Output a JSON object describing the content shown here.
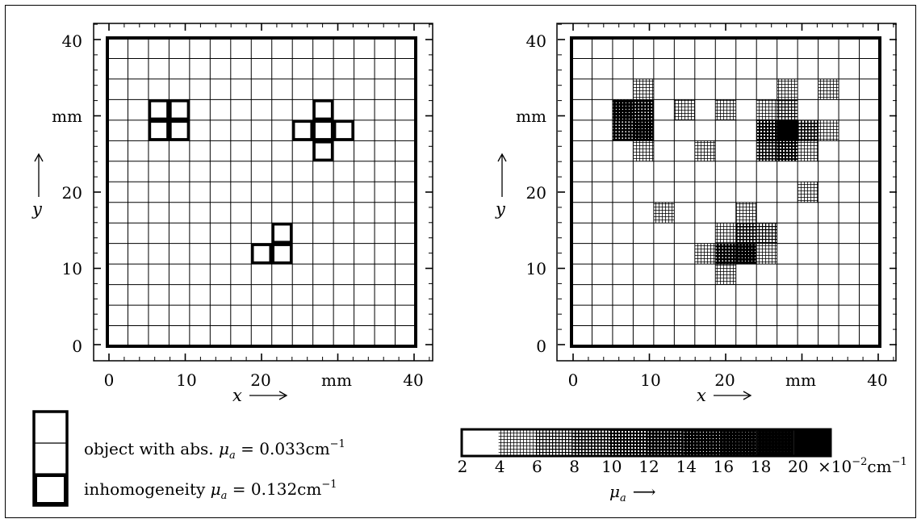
{
  "left_plot": {
    "y_ticks": [
      "0",
      "10",
      "20",
      "mm",
      "40"
    ],
    "x_ticks": [
      "0",
      "10",
      "20",
      "mm",
      "40"
    ],
    "y_axis_label": "y",
    "x_axis_label": "x",
    "grid_n": 15,
    "inhomogeneity_cells": [
      [
        2,
        11
      ],
      [
        3,
        11
      ],
      [
        2,
        10
      ],
      [
        3,
        10
      ],
      [
        10,
        11
      ],
      [
        9,
        10
      ],
      [
        10,
        10
      ],
      [
        11,
        10
      ],
      [
        10,
        9
      ],
      [
        8,
        5
      ],
      [
        7,
        4
      ],
      [
        8,
        4
      ]
    ]
  },
  "right_plot": {
    "y_ticks": [
      "0",
      "10",
      "20",
      "mm",
      "40"
    ],
    "x_ticks": [
      "0",
      "10",
      "20",
      "mm",
      "40"
    ],
    "y_axis_label": "y",
    "x_axis_label": "x",
    "grid_n": 15,
    "shaded_cells": [
      {
        "c": 3,
        "r": 12,
        "level": 1
      },
      {
        "c": 10,
        "r": 12,
        "level": 1
      },
      {
        "c": 12,
        "r": 12,
        "level": 1
      },
      {
        "c": 2,
        "r": 11,
        "level": 6
      },
      {
        "c": 3,
        "r": 11,
        "level": 5
      },
      {
        "c": 5,
        "r": 11,
        "level": 1
      },
      {
        "c": 7,
        "r": 11,
        "level": 1
      },
      {
        "c": 9,
        "r": 11,
        "level": 1
      },
      {
        "c": 10,
        "r": 11,
        "level": 2
      },
      {
        "c": 2,
        "r": 10,
        "level": 5
      },
      {
        "c": 3,
        "r": 10,
        "level": 6
      },
      {
        "c": 9,
        "r": 10,
        "level": 4
      },
      {
        "c": 10,
        "r": 10,
        "level": 9
      },
      {
        "c": 11,
        "r": 10,
        "level": 3
      },
      {
        "c": 12,
        "r": 10,
        "level": 1
      },
      {
        "c": 3,
        "r": 9,
        "level": 1
      },
      {
        "c": 6,
        "r": 9,
        "level": 1
      },
      {
        "c": 9,
        "r": 9,
        "level": 3
      },
      {
        "c": 10,
        "r": 9,
        "level": 4
      },
      {
        "c": 11,
        "r": 9,
        "level": 1
      },
      {
        "c": 11,
        "r": 7,
        "level": 1
      },
      {
        "c": 4,
        "r": 6,
        "level": 1
      },
      {
        "c": 8,
        "r": 6,
        "level": 1
      },
      {
        "c": 7,
        "r": 5,
        "level": 1
      },
      {
        "c": 8,
        "r": 5,
        "level": 3
      },
      {
        "c": 9,
        "r": 5,
        "level": 2
      },
      {
        "c": 6,
        "r": 4,
        "level": 1
      },
      {
        "c": 7,
        "r": 4,
        "level": 5
      },
      {
        "c": 8,
        "r": 4,
        "level": 6
      },
      {
        "c": 9,
        "r": 4,
        "level": 1
      },
      {
        "c": 7,
        "r": 3,
        "level": 1
      }
    ]
  },
  "legend": {
    "object_label_prefix": "object with abs. ",
    "object_value": "0.033cm",
    "inhomogeneity_label_prefix": "inhomogeneity ",
    "inhomogeneity_value": "0.132cm",
    "mu_symbol": "μ",
    "mu_sub": "a",
    "exponent": "−1"
  },
  "colorbar": {
    "tick_labels": [
      "2",
      "4",
      "6",
      "8",
      "10",
      "12",
      "14",
      "16",
      "18",
      "20"
    ],
    "unit_prefix": "×10",
    "unit_exp": "−2",
    "unit_suffix": "cm",
    "unit_exp2": "−1",
    "axis_label_symbol": "μ",
    "axis_label_sub": "a",
    "arrow": "⟶"
  }
}
